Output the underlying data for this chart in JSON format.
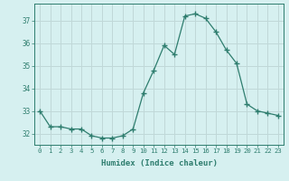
{
  "x": [
    0,
    1,
    2,
    3,
    4,
    5,
    6,
    7,
    8,
    9,
    10,
    11,
    12,
    13,
    14,
    15,
    16,
    17,
    18,
    19,
    20,
    21,
    22,
    23
  ],
  "y": [
    33.0,
    32.3,
    32.3,
    32.2,
    32.2,
    31.9,
    31.8,
    31.8,
    31.9,
    32.2,
    33.8,
    34.8,
    35.9,
    35.5,
    37.2,
    37.3,
    37.1,
    36.5,
    35.7,
    35.1,
    33.3,
    33.0,
    32.9,
    32.8
  ],
  "line_color": "#2e7d6e",
  "marker": "+",
  "marker_size": 4,
  "bg_color": "#d6f0f0",
  "grid_color": "#c0d8d8",
  "xlabel": "Humidex (Indice chaleur)",
  "ylim": [
    31.5,
    37.75
  ],
  "xlim": [
    -0.5,
    23.5
  ],
  "yticks": [
    32,
    33,
    34,
    35,
    36,
    37
  ],
  "xticks": [
    0,
    1,
    2,
    3,
    4,
    5,
    6,
    7,
    8,
    9,
    10,
    11,
    12,
    13,
    14,
    15,
    16,
    17,
    18,
    19,
    20,
    21,
    22,
    23
  ],
  "xtick_labels": [
    "0",
    "1",
    "2",
    "3",
    "4",
    "5",
    "6",
    "7",
    "8",
    "9",
    "10",
    "11",
    "12",
    "13",
    "14",
    "15",
    "16",
    "17",
    "18",
    "19",
    "20",
    "21",
    "22",
    "23"
  ],
  "axis_color": "#2e7d6e",
  "tick_color": "#2e7d6e",
  "label_color": "#2e7d6e"
}
